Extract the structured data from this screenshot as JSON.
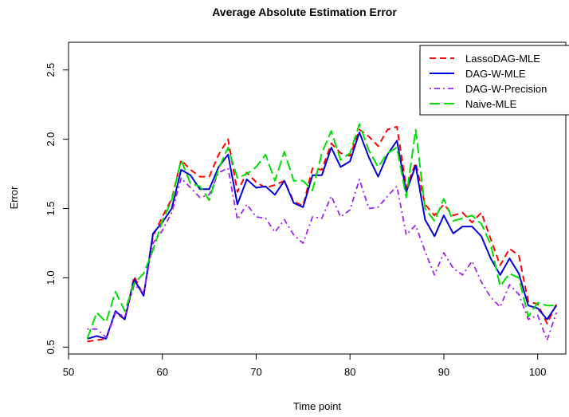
{
  "chart_data": {
    "type": "line",
    "title": "Average Absolute Estimation Error",
    "xlabel": "Time point",
    "ylabel": "Error",
    "xlim": [
      50,
      103
    ],
    "ylim": [
      0.45,
      2.7
    ],
    "xticks": [
      50,
      60,
      70,
      80,
      90,
      100
    ],
    "yticks": [
      0.5,
      1.0,
      1.5,
      2.0,
      2.5
    ],
    "xtick_labels": [
      "50",
      "60",
      "70",
      "80",
      "90",
      "100"
    ],
    "ytick_labels": [
      "0.5",
      "1.0",
      "1.5",
      "2.0",
      "2.5"
    ],
    "grid": false,
    "legend_position": "top-right",
    "x": [
      52,
      53,
      54,
      55,
      56,
      57,
      58,
      59,
      60,
      61,
      62,
      63,
      64,
      65,
      66,
      67,
      68,
      69,
      70,
      71,
      72,
      73,
      74,
      75,
      76,
      77,
      78,
      79,
      80,
      81,
      82,
      83,
      84,
      85,
      86,
      87,
      88,
      89,
      90,
      91,
      92,
      93,
      94,
      95,
      96,
      97,
      98,
      99,
      100,
      101,
      102
    ],
    "series": [
      {
        "name": "LassoDAG-MLE",
        "color": "#ff0000",
        "dash": "dashed",
        "values": [
          0.54,
          0.55,
          0.56,
          0.75,
          0.7,
          1.01,
          0.87,
          1.3,
          1.44,
          1.57,
          1.85,
          1.78,
          1.73,
          1.73,
          1.89,
          2.0,
          1.62,
          1.76,
          1.69,
          1.65,
          1.67,
          1.7,
          1.55,
          1.52,
          1.79,
          1.78,
          1.97,
          1.9,
          1.88,
          2.07,
          2.02,
          1.95,
          2.07,
          2.09,
          1.65,
          1.83,
          1.53,
          1.45,
          1.53,
          1.45,
          1.47,
          1.4,
          1.47,
          1.28,
          1.09,
          1.21,
          1.16,
          0.83,
          0.81,
          0.67,
          0.81
        ]
      },
      {
        "name": "DAG-W-MLE",
        "color": "#0000dd",
        "dash": "solid",
        "values": [
          0.56,
          0.58,
          0.56,
          0.76,
          0.7,
          0.99,
          0.87,
          1.32,
          1.4,
          1.5,
          1.78,
          1.74,
          1.64,
          1.64,
          1.8,
          1.89,
          1.53,
          1.71,
          1.65,
          1.66,
          1.6,
          1.7,
          1.54,
          1.51,
          1.74,
          1.74,
          1.94,
          1.8,
          1.84,
          2.05,
          1.87,
          1.73,
          1.89,
          1.99,
          1.62,
          1.81,
          1.42,
          1.3,
          1.45,
          1.32,
          1.37,
          1.37,
          1.3,
          1.14,
          1.02,
          1.14,
          1.03,
          0.8,
          0.78,
          0.7,
          0.8
        ]
      },
      {
        "name": "DAG-W-Precision",
        "color": "#a020f0",
        "dash": "dashdot",
        "values": [
          0.63,
          0.63,
          0.57,
          0.75,
          0.72,
          0.95,
          0.89,
          1.25,
          1.34,
          1.47,
          1.72,
          1.65,
          1.58,
          1.6,
          1.76,
          1.79,
          1.42,
          1.53,
          1.44,
          1.43,
          1.33,
          1.42,
          1.31,
          1.25,
          1.44,
          1.43,
          1.59,
          1.44,
          1.49,
          1.71,
          1.5,
          1.51,
          1.59,
          1.66,
          1.31,
          1.38,
          1.19,
          1.02,
          1.18,
          1.07,
          1.02,
          1.12,
          0.97,
          0.86,
          0.79,
          0.95,
          0.88,
          0.7,
          0.73,
          0.55,
          0.75
        ]
      },
      {
        "name": "Naive-MLE",
        "color": "#00dd00",
        "dash": "longdash",
        "values": [
          0.56,
          0.75,
          0.68,
          0.9,
          0.76,
          0.96,
          1.03,
          1.2,
          1.41,
          1.56,
          1.85,
          1.68,
          1.66,
          1.56,
          1.79,
          1.94,
          1.72,
          1.75,
          1.8,
          1.89,
          1.7,
          1.91,
          1.7,
          1.7,
          1.63,
          1.9,
          2.06,
          1.85,
          1.9,
          2.11,
          1.92,
          1.8,
          1.9,
          1.94,
          1.58,
          2.07,
          1.5,
          1.41,
          1.57,
          1.41,
          1.43,
          1.45,
          1.39,
          1.24,
          0.94,
          1.03,
          1.0,
          0.72,
          0.82,
          0.8,
          0.8
        ]
      }
    ]
  }
}
